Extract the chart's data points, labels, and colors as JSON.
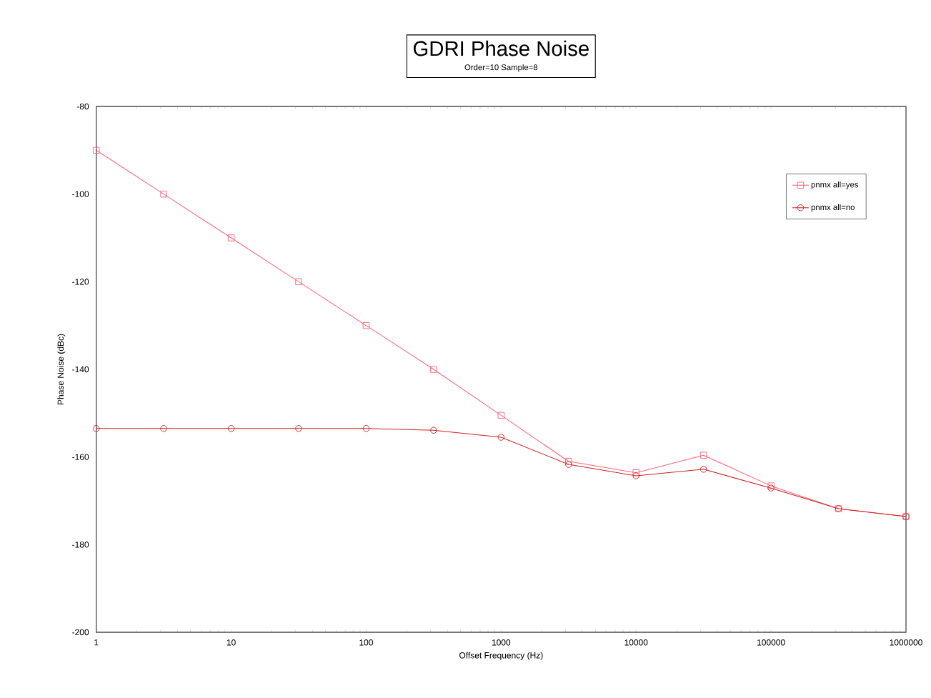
{
  "chart_data": {
    "type": "line",
    "title": "GDRI Phase Noise",
    "subtitle": "Order=10 Sample=8",
    "xlabel": "Offset Frequency (Hz)",
    "ylabel": "Phase Noise (dBc)",
    "x": [
      1,
      3.162,
      10,
      31.62,
      100,
      316.2,
      1000,
      3162,
      10000,
      31623,
      100000,
      316228,
      1000000
    ],
    "series": [
      {
        "name": "pnmx all=yes",
        "color": "#ff6677",
        "marker": "square",
        "values": [
          -90,
          -100,
          -110,
          -120,
          -130,
          -140,
          -150.5,
          -161,
          -163.6,
          -159.6,
          -166.6,
          -171.8,
          -173.6
        ]
      },
      {
        "name": "pnmx all=no",
        "color": "#cc2222",
        "marker": "circle",
        "values": [
          -153.5,
          -153.5,
          -153.5,
          -153.5,
          -153.5,
          -153.9,
          -155.5,
          -161.7,
          -164.3,
          -162.8,
          -167.1,
          -171.8,
          -173.6
        ]
      }
    ],
    "log": "x",
    "xlim": [
      1,
      1000000
    ],
    "ylim": [
      -200,
      -80
    ],
    "xticks": [
      1,
      10,
      100,
      1000,
      10000,
      100000,
      1000000
    ],
    "yticks": [
      -200,
      -180,
      -160,
      -140,
      -120,
      -100,
      -80
    ],
    "grid": false,
    "legend": "top right",
    "line_style": "solid"
  }
}
